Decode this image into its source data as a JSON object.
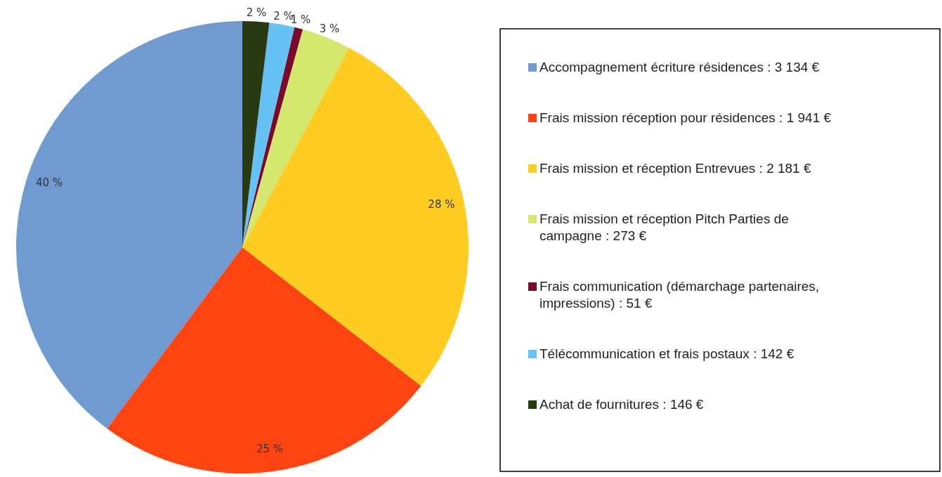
{
  "chart_data": {
    "type": "pie",
    "categories": [
      "Accompagnement écriture résidences : 3 134 €",
      "Frais mission réception pour résidences : 1 941 €",
      "Frais mission et réception Entrevues : 2 181 €",
      "Frais mission et réception Pitch Parties de campagne : 273 €",
      "Frais communication (démarchage partenaires, impressions) : 51 €",
      "Télécommunication et frais postaux : 142 €",
      "Achat de fournitures : 146 €"
    ],
    "values": [
      39.8,
      24.7,
      27.7,
      3.5,
      0.6,
      1.8,
      1.9
    ],
    "colors": [
      "#6f9bd0",
      "#ff4411",
      "#ffcc22",
      "#d4e870",
      "#7a0a2a",
      "#66c2f5",
      "#2a3a10"
    ],
    "value_labels": [
      "40 %",
      "25 %",
      "28 %",
      "3 %",
      "1 %",
      "2 %",
      "2 %"
    ],
    "legend": "right"
  }
}
